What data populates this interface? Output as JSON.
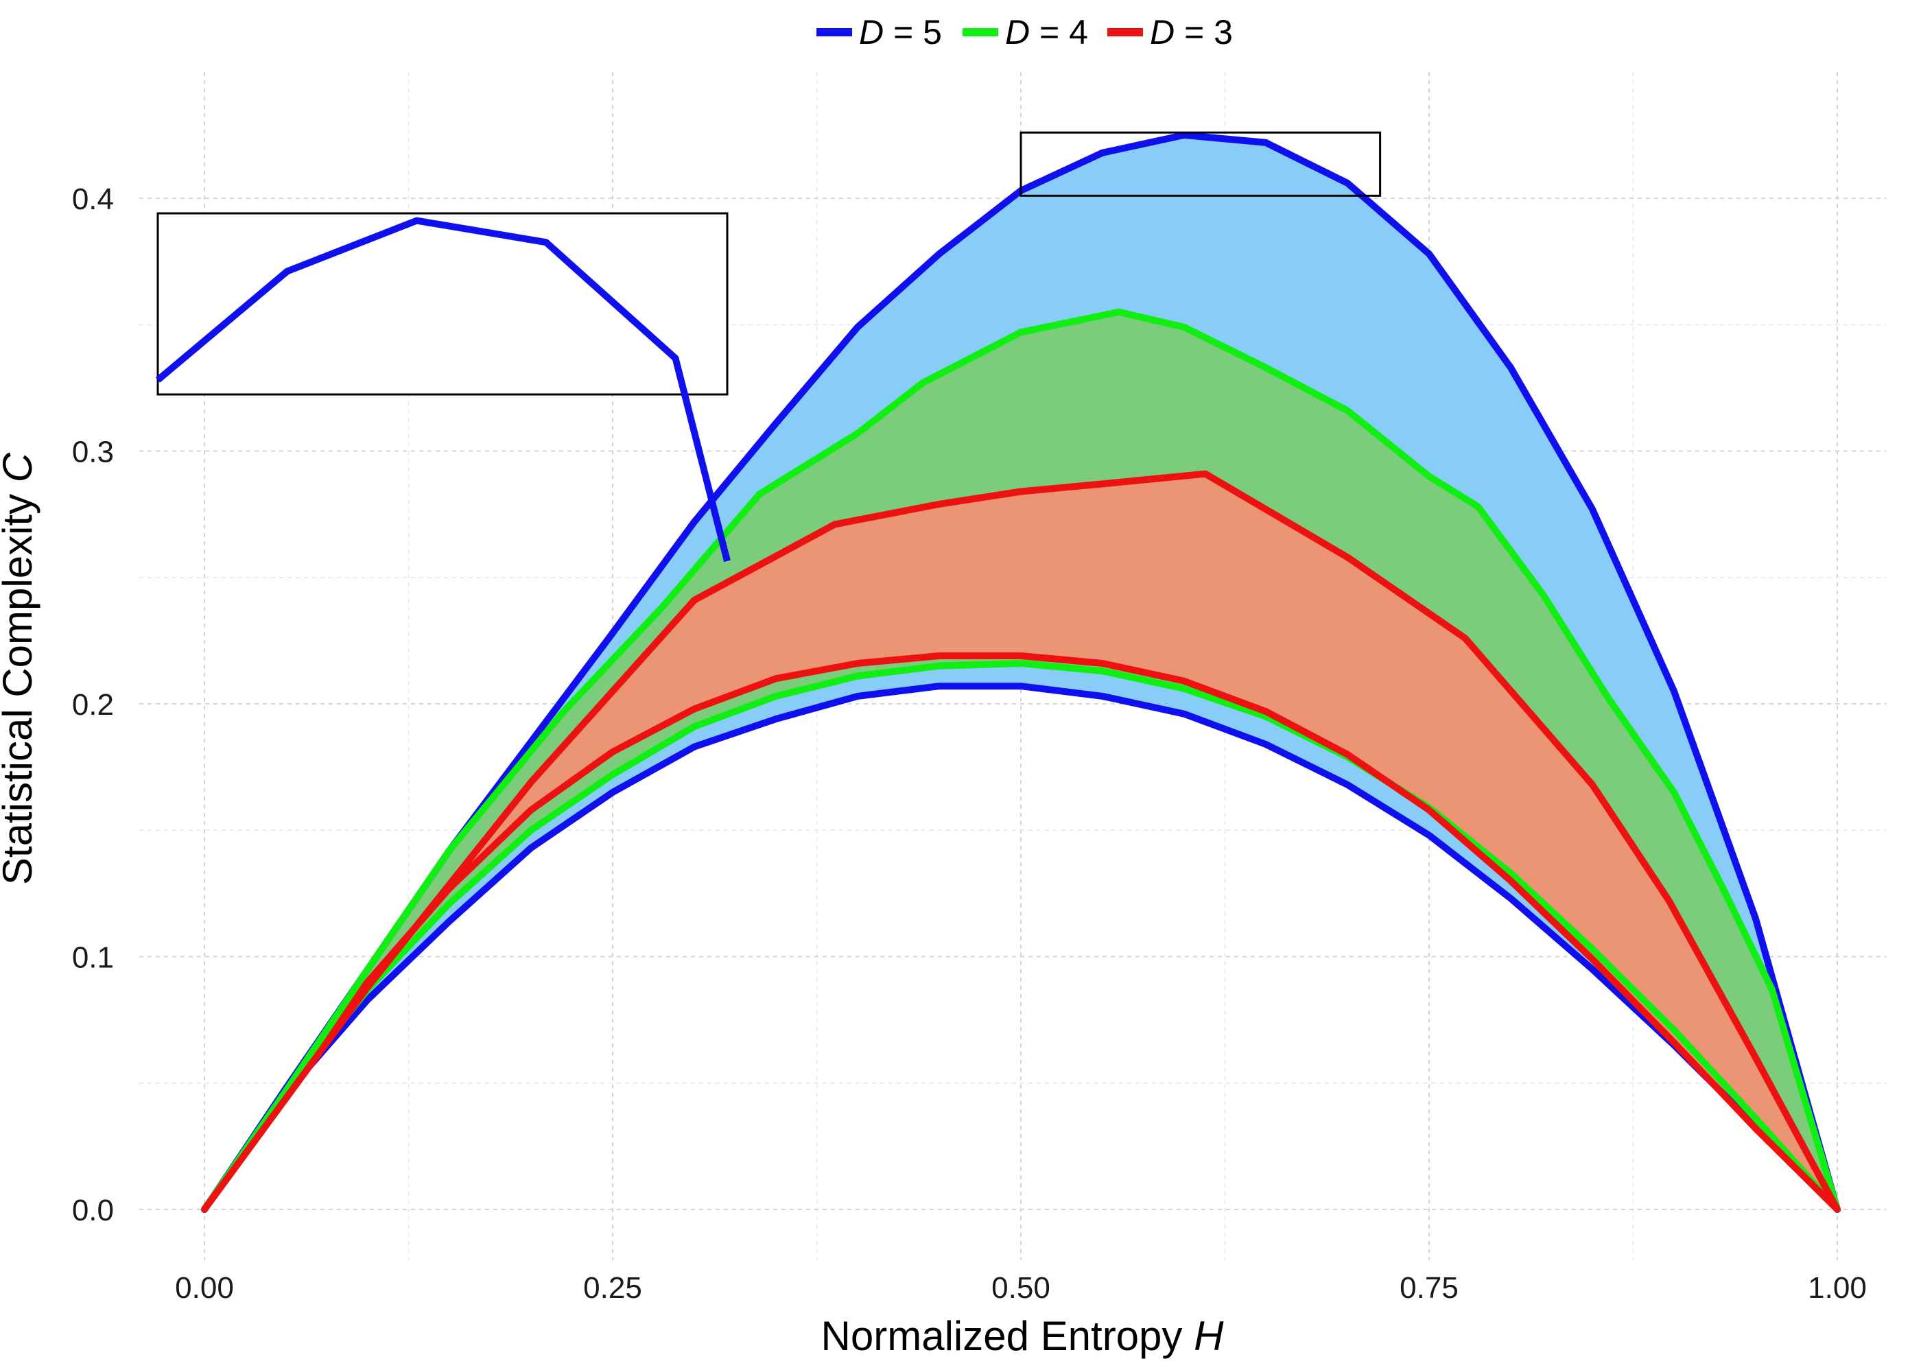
{
  "chart_data": {
    "type": "area",
    "title": "",
    "xlabel": "Normalized Entropy ",
    "xlabel_symbol": "H",
    "ylabel": "Statistical Complexity ",
    "ylabel_symbol": "C",
    "xlim": [
      -0.04,
      1.03
    ],
    "ylim": [
      -0.02,
      0.45
    ],
    "x_ticks": [
      0.0,
      0.25,
      0.5,
      0.75,
      1.0
    ],
    "x_tick_labels": [
      "0.00",
      "0.25",
      "0.50",
      "0.75",
      "1.00"
    ],
    "y_ticks": [
      0.0,
      0.1,
      0.2,
      0.3,
      0.4
    ],
    "y_tick_labels": [
      "0.0",
      "0.1",
      "0.2",
      "0.3",
      "0.4"
    ],
    "grid": true,
    "legend_position": "top",
    "series": [
      {
        "name": "D = 5",
        "symbol": "D",
        "label": " = 5",
        "line_color": "#1010ee",
        "fill_color": "#87cdf7",
        "upper": {
          "x": [
            0.0,
            0.05,
            0.1,
            0.15,
            0.2,
            0.25,
            0.3,
            0.35,
            0.4,
            0.45,
            0.5,
            0.55,
            0.6,
            0.65,
            0.7,
            0.75,
            0.8,
            0.85,
            0.9,
            0.95,
            1.0
          ],
          "y": [
            0.0,
            0.048,
            0.095,
            0.142,
            0.185,
            0.228,
            0.272,
            0.311,
            0.349,
            0.378,
            0.403,
            0.418,
            0.425,
            0.422,
            0.406,
            0.378,
            0.333,
            0.277,
            0.205,
            0.115,
            0.0
          ]
        },
        "lower": {
          "x": [
            0.0,
            0.05,
            0.1,
            0.15,
            0.2,
            0.25,
            0.3,
            0.35,
            0.4,
            0.45,
            0.5,
            0.55,
            0.6,
            0.65,
            0.7,
            0.75,
            0.8,
            0.85,
            0.9,
            0.95,
            1.0
          ],
          "y": [
            0.0,
            0.046,
            0.083,
            0.114,
            0.143,
            0.165,
            0.183,
            0.194,
            0.203,
            0.207,
            0.207,
            0.203,
            0.196,
            0.184,
            0.168,
            0.148,
            0.123,
            0.095,
            0.065,
            0.033,
            0.0
          ]
        }
      },
      {
        "name": "D = 4",
        "symbol": "D",
        "label": " = 4",
        "line_color": "#11ee11",
        "fill_color": "#7bcd7b",
        "upper": {
          "x": [
            0.0,
            0.05,
            0.1,
            0.15,
            0.22,
            0.28,
            0.34,
            0.4,
            0.44,
            0.5,
            0.56,
            0.6,
            0.65,
            0.7,
            0.75,
            0.78,
            0.82,
            0.86,
            0.9,
            0.93,
            0.96,
            1.0
          ],
          "y": [
            0.0,
            0.047,
            0.095,
            0.142,
            0.197,
            0.238,
            0.283,
            0.307,
            0.327,
            0.347,
            0.355,
            0.349,
            0.333,
            0.316,
            0.29,
            0.278,
            0.243,
            0.202,
            0.165,
            0.127,
            0.087,
            0.0
          ]
        },
        "lower": {
          "x": [
            0.0,
            0.05,
            0.1,
            0.15,
            0.2,
            0.25,
            0.3,
            0.35,
            0.4,
            0.45,
            0.5,
            0.55,
            0.6,
            0.65,
            0.7,
            0.75,
            0.8,
            0.85,
            0.9,
            0.95,
            1.0
          ],
          "y": [
            0.0,
            0.047,
            0.087,
            0.121,
            0.15,
            0.172,
            0.191,
            0.203,
            0.211,
            0.215,
            0.216,
            0.213,
            0.206,
            0.195,
            0.179,
            0.159,
            0.133,
            0.103,
            0.071,
            0.036,
            0.0
          ]
        }
      },
      {
        "name": "D = 3",
        "symbol": "D",
        "label": " = 3",
        "line_color": "#ee1111",
        "fill_color": "#ec9574",
        "upper": {
          "x": [
            0.0,
            0.1,
            0.2,
            0.3,
            0.386,
            0.45,
            0.5,
            0.55,
            0.613,
            0.7,
            0.772,
            0.85,
            0.897,
            0.95,
            1.0
          ],
          "y": [
            0.0,
            0.088,
            0.169,
            0.241,
            0.271,
            0.279,
            0.284,
            0.287,
            0.291,
            0.258,
            0.226,
            0.168,
            0.122,
            0.06,
            0.0
          ]
        },
        "lower": {
          "x": [
            0.0,
            0.05,
            0.1,
            0.15,
            0.2,
            0.25,
            0.3,
            0.35,
            0.4,
            0.45,
            0.5,
            0.55,
            0.6,
            0.65,
            0.7,
            0.75,
            0.8,
            0.85,
            0.9,
            0.95,
            1.0
          ],
          "y": [
            0.0,
            0.047,
            0.09,
            0.127,
            0.158,
            0.181,
            0.198,
            0.21,
            0.216,
            0.219,
            0.219,
            0.216,
            0.209,
            0.197,
            0.18,
            0.158,
            0.13,
            0.099,
            0.066,
            0.032,
            0.0
          ]
        }
      }
    ],
    "inset": {
      "description_source_region": {
        "xlim": [
          0.5,
          0.72
        ],
        "ylim": [
          0.401,
          0.426
        ]
      }
    }
  }
}
